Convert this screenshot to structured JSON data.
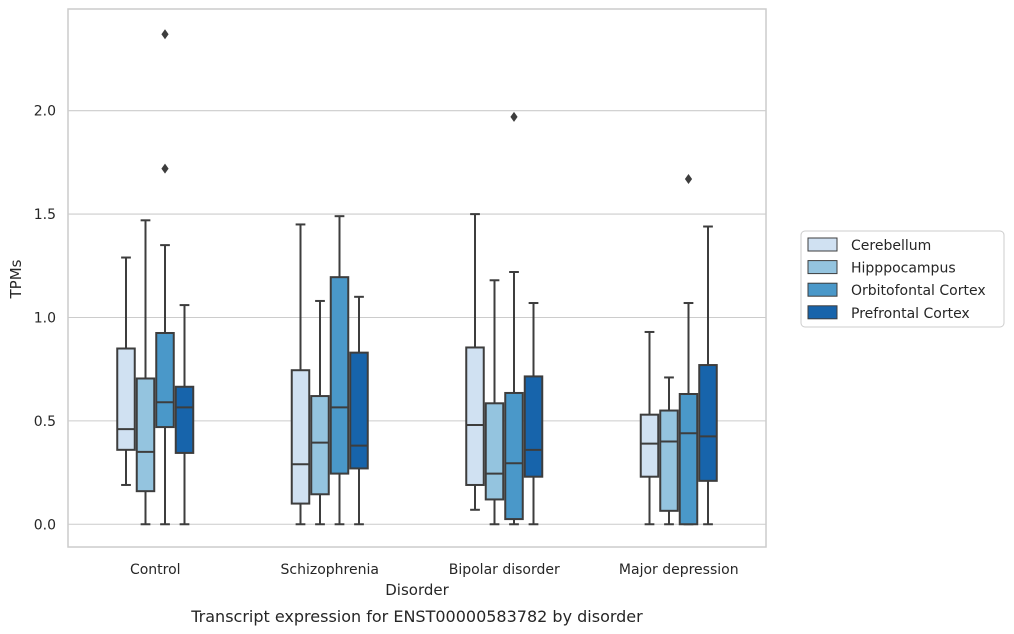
{
  "chart_data": {
    "type": "box",
    "caption": "Transcript expression for ENST00000583782 by disorder",
    "xlabel": "Disorder",
    "ylabel": "TPMs",
    "ylim": [
      -0.11,
      2.492
    ],
    "yticks": [
      0.0,
      0.5,
      1.0,
      1.5,
      2.0
    ],
    "ytick_labels": [
      "0.0",
      "0.5",
      "1.0",
      "1.5",
      "2.0"
    ],
    "grid": "horizontal",
    "legend_position": "right",
    "categories": [
      "Control",
      "Schizophrenia",
      "Bipolar disorder",
      "Major depression"
    ],
    "series": [
      {
        "name": "Cerebellum",
        "color": "#d0e1f2",
        "boxes": [
          {
            "whisker_low": 0.19,
            "q1": 0.36,
            "median": 0.46,
            "q3": 0.85,
            "whisker_high": 1.29,
            "outliers": []
          },
          {
            "whisker_low": 0.0,
            "q1": 0.1,
            "median": 0.29,
            "q3": 0.745,
            "whisker_high": 1.45,
            "outliers": []
          },
          {
            "whisker_low": 0.07,
            "q1": 0.19,
            "median": 0.48,
            "q3": 0.855,
            "whisker_high": 1.5,
            "outliers": []
          },
          {
            "whisker_low": 0.0,
            "q1": 0.23,
            "median": 0.39,
            "q3": 0.53,
            "whisker_high": 0.93,
            "outliers": []
          }
        ]
      },
      {
        "name": "Hipppocampus",
        "color": "#94c4df",
        "boxes": [
          {
            "whisker_low": 0.0,
            "q1": 0.16,
            "median": 0.35,
            "q3": 0.705,
            "whisker_high": 1.47,
            "outliers": []
          },
          {
            "whisker_low": 0.0,
            "q1": 0.145,
            "median": 0.395,
            "q3": 0.62,
            "whisker_high": 1.08,
            "outliers": []
          },
          {
            "whisker_low": 0.0,
            "q1": 0.12,
            "median": 0.245,
            "q3": 0.585,
            "whisker_high": 1.18,
            "outliers": []
          },
          {
            "whisker_low": 0.0,
            "q1": 0.065,
            "median": 0.4,
            "q3": 0.55,
            "whisker_high": 0.71,
            "outliers": []
          }
        ]
      },
      {
        "name": "Orbitofontal Cortex",
        "color": "#4a98c9",
        "boxes": [
          {
            "whisker_low": 0.0,
            "q1": 0.47,
            "median": 0.59,
            "q3": 0.925,
            "whisker_high": 1.35,
            "outliers": [
              1.72,
              2.37
            ]
          },
          {
            "whisker_low": 0.0,
            "q1": 0.245,
            "median": 0.565,
            "q3": 1.195,
            "whisker_high": 1.49,
            "outliers": []
          },
          {
            "whisker_low": 0.0,
            "q1": 0.025,
            "median": 0.295,
            "q3": 0.635,
            "whisker_high": 1.22,
            "outliers": [
              1.97
            ]
          },
          {
            "whisker_low": 0.0,
            "q1": 0.0,
            "median": 0.44,
            "q3": 0.63,
            "whisker_high": 1.07,
            "outliers": [
              1.67
            ]
          }
        ]
      },
      {
        "name": "Prefrontal Cortex",
        "color": "#1764ab",
        "boxes": [
          {
            "whisker_low": 0.0,
            "q1": 0.345,
            "median": 0.565,
            "q3": 0.665,
            "whisker_high": 1.06,
            "outliers": []
          },
          {
            "whisker_low": 0.0,
            "q1": 0.27,
            "median": 0.38,
            "q3": 0.83,
            "whisker_high": 1.1,
            "outliers": []
          },
          {
            "whisker_low": 0.0,
            "q1": 0.23,
            "median": 0.36,
            "q3": 0.715,
            "whisker_high": 1.07,
            "outliers": []
          },
          {
            "whisker_low": 0.0,
            "q1": 0.21,
            "median": 0.425,
            "q3": 0.77,
            "whisker_high": 1.44,
            "outliers": []
          }
        ]
      }
    ]
  }
}
